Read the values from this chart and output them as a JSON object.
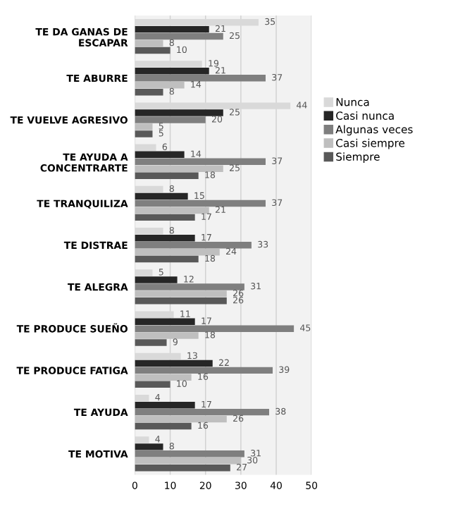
{
  "chart_data": {
    "type": "bar",
    "orientation": "horizontal",
    "categories": [
      "TE DA GANAS DE\nESCAPAR",
      "TE ABURRE",
      "TE VUELVE AGRESIVO",
      "TE AYUDA A\nCONCENTRARTE",
      "TE TRANQUILIZA",
      "TE DISTRAE",
      "TE ALEGRA",
      "TE PRODUCE SUEÑO",
      "TE PRODUCE FATIGA",
      "TE AYUDA",
      "TE MOTIVA"
    ],
    "series": [
      {
        "name": "Nunca",
        "color": "#d9d9d9",
        "values": [
          35,
          19,
          44,
          6,
          8,
          8,
          5,
          11,
          13,
          4,
          4
        ]
      },
      {
        "name": "Casi nunca",
        "color": "#262626",
        "values": [
          21,
          21,
          25,
          14,
          15,
          17,
          12,
          17,
          22,
          17,
          8
        ]
      },
      {
        "name": "Algunas veces",
        "color": "#7f7f7f",
        "values": [
          25,
          37,
          20,
          37,
          37,
          33,
          31,
          45,
          39,
          38,
          31
        ]
      },
      {
        "name": "Casi siempre",
        "color": "#bfbfbf",
        "values": [
          8,
          14,
          5,
          25,
          21,
          24,
          26,
          18,
          16,
          26,
          30
        ]
      },
      {
        "name": "Siempre",
        "color": "#595959",
        "values": [
          10,
          8,
          5,
          18,
          17,
          18,
          26,
          9,
          10,
          16,
          27
        ]
      }
    ],
    "xlim": [
      0,
      50
    ],
    "xticks": [
      0,
      10,
      20,
      30,
      40,
      50
    ],
    "grid": "x",
    "legend": "right",
    "data_labels": true
  }
}
